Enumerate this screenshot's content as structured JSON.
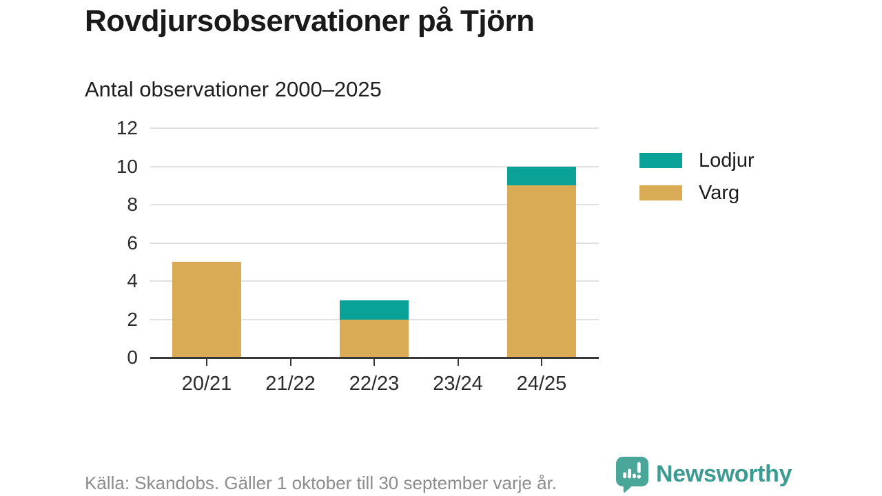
{
  "title": "Rovdjursobservationer på Tjörn",
  "subtitle": "Antal observationer 2000–2025",
  "footer": {
    "source": "Källa: Skandobs. Gäller 1 oktober till 30 september varje år.",
    "brand": "Newsworthy"
  },
  "colors": {
    "lodjur": "#0aa296",
    "varg": "#d9ab55",
    "grid": "#e0e0e0",
    "axis": "#383838",
    "tick_text": "#2b2b2b",
    "muted_text": "#8c8c8c",
    "brand_teal": "#3c9b91",
    "logo_bubble": "#4aa698"
  },
  "chart_data": {
    "type": "bar",
    "stacked": true,
    "title": "Rovdjursobservationer på Tjörn",
    "subtitle": "Antal observationer 2000–2025",
    "categories": [
      "20/21",
      "21/22",
      "22/23",
      "23/24",
      "24/25"
    ],
    "series": [
      {
        "name": "Varg",
        "color": "#d9ab55",
        "values": [
          5,
          0,
          2,
          0,
          9
        ]
      },
      {
        "name": "Lodjur",
        "color": "#0aa296",
        "values": [
          0,
          0,
          1,
          0,
          1
        ]
      }
    ],
    "totals": [
      5,
      0,
      3,
      0,
      10
    ],
    "xlabel": "",
    "ylabel": "",
    "ylim": [
      0,
      12
    ],
    "yticks": [
      0,
      2,
      4,
      6,
      8,
      10,
      12
    ],
    "grid": true,
    "legend_position": "right",
    "legend": [
      {
        "label": "Lodjur",
        "color": "#0aa296"
      },
      {
        "label": "Varg",
        "color": "#d9ab55"
      }
    ]
  }
}
